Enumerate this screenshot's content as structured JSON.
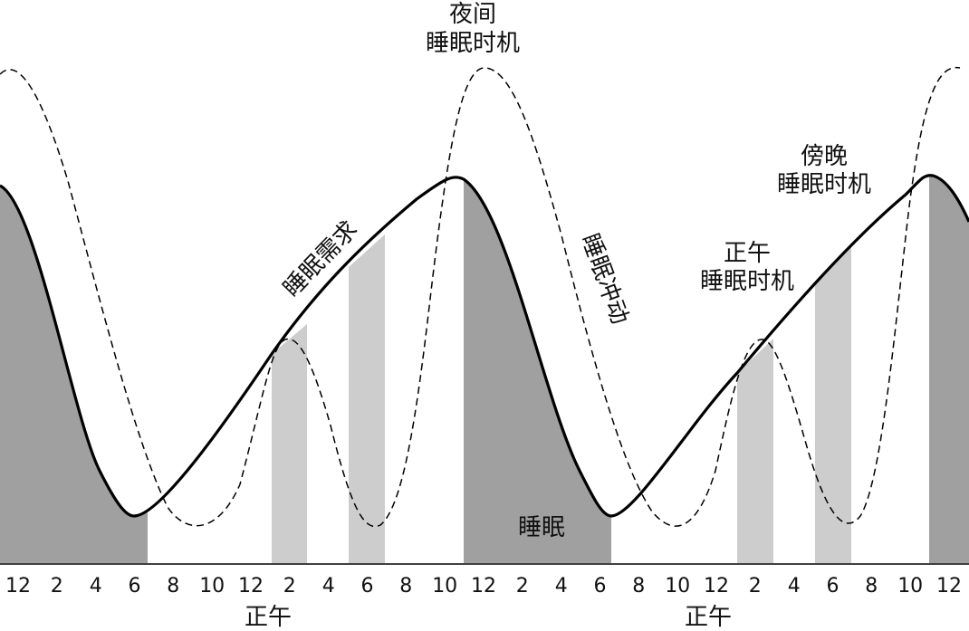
{
  "axis": {
    "ticks": [
      "12",
      "2",
      "4",
      "6",
      "8",
      "10",
      "12",
      "2",
      "4",
      "6",
      "8",
      "10",
      "12",
      "2",
      "4",
      "6",
      "8",
      "10",
      "12",
      "2",
      "4",
      "6",
      "8",
      "10",
      "12"
    ],
    "noon_label_1": "正午",
    "noon_label_2": "正午"
  },
  "labels": {
    "night_line1": "夜间",
    "night_line2": "睡眠时机",
    "sleep_need": "睡眠需求",
    "sleep_drive": "睡眠冲动",
    "noon_line1": "正午",
    "noon_line2": "睡眠时机",
    "evening_line1": "傍晚",
    "evening_line2": "睡眠时机",
    "sleep": "睡眠"
  },
  "colors": {
    "sleep_fill": "#a0a0a0",
    "nap_fill": "#cdcdcd",
    "line": "#000000"
  }
}
